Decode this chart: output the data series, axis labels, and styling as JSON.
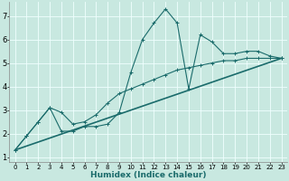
{
  "xlabel": "Humidex (Indice chaleur)",
  "xlim": [
    -0.5,
    23.5
  ],
  "ylim": [
    0.8,
    7.6
  ],
  "yticks": [
    1,
    2,
    3,
    4,
    5,
    6,
    7
  ],
  "xticks": [
    0,
    1,
    2,
    3,
    4,
    5,
    6,
    7,
    8,
    9,
    10,
    11,
    12,
    13,
    14,
    15,
    16,
    17,
    18,
    19,
    20,
    21,
    22,
    23
  ],
  "bg_color": "#c8e8e0",
  "grid_color": "#f0ffff",
  "line_color": "#1a6b6b",
  "curve1_x": [
    0,
    1,
    2,
    3,
    4,
    5,
    6,
    7,
    8,
    9,
    10,
    11,
    12,
    13,
    14,
    15,
    16,
    17,
    18,
    19,
    20,
    21,
    22,
    23
  ],
  "curve1_y": [
    1.3,
    1.9,
    2.5,
    3.1,
    2.1,
    2.1,
    2.3,
    2.3,
    2.4,
    2.9,
    4.6,
    6.0,
    6.7,
    7.3,
    6.7,
    3.9,
    6.2,
    5.9,
    5.4,
    5.4,
    5.5,
    5.5,
    5.3,
    5.2
  ],
  "curve2_x": [
    0,
    1,
    2,
    3,
    4,
    5,
    6,
    7,
    8,
    9,
    10,
    11,
    12,
    13,
    14,
    15,
    16,
    17,
    18,
    19,
    20,
    21,
    22,
    23
  ],
  "curve2_y": [
    1.3,
    1.9,
    2.5,
    3.1,
    2.9,
    2.4,
    2.5,
    2.8,
    3.3,
    3.7,
    3.9,
    4.1,
    4.3,
    4.5,
    4.7,
    4.8,
    4.9,
    5.0,
    5.1,
    5.1,
    5.2,
    5.2,
    5.2,
    5.2
  ],
  "curve3_x": [
    0,
    23
  ],
  "curve3_y": [
    1.3,
    5.2
  ],
  "xtick_fontsize": 5.0,
  "ytick_fontsize": 6.0,
  "xlabel_fontsize": 6.5
}
